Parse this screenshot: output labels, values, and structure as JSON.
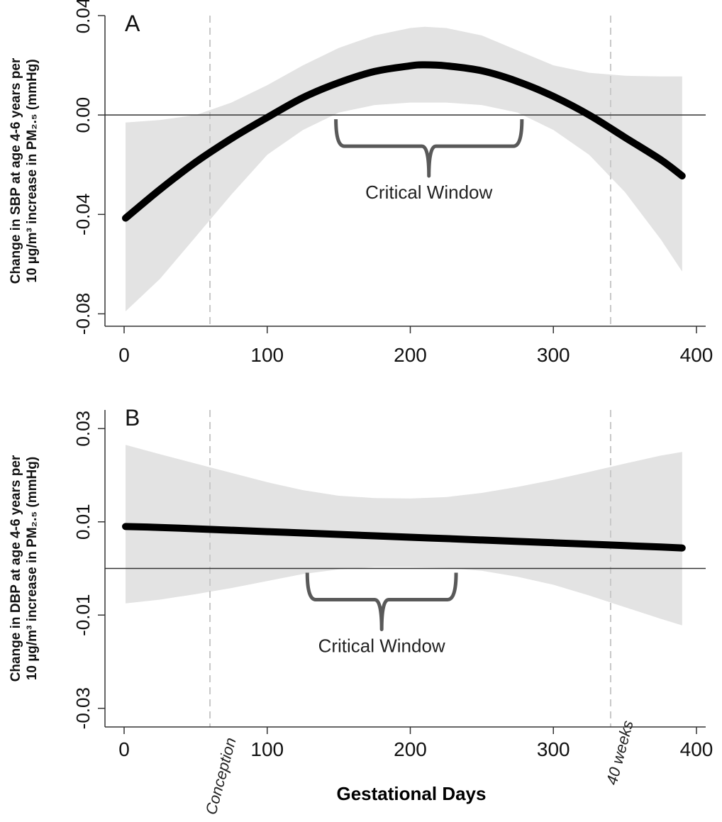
{
  "shared_xlabel": "Gestational Days",
  "annotation_text": "Critical Window",
  "vline_labels": [
    "Conception",
    "40 weeks"
  ],
  "vlines_x": [
    60,
    340
  ],
  "colors": {
    "band": "#e3e3e3",
    "line": "#000000",
    "brace": "#595959",
    "vline": "#c8c8c8"
  },
  "chart_data": [
    {
      "type": "line",
      "panel_label": "A",
      "ylabel_lines": [
        "Change in SBP  at age 4-6 years per",
        "10 µg/m³ increase in PM₂.₅ (mmHg)"
      ],
      "xlim": [
        0,
        400
      ],
      "ylim": [
        -0.085,
        0.04
      ],
      "xticks": [
        0,
        100,
        200,
        300,
        400
      ],
      "xtick_labels": [
        "0",
        "100",
        "200",
        "300",
        "400"
      ],
      "yticks": [
        -0.08,
        -0.04,
        0.0,
        0.04
      ],
      "ytick_labels": [
        "-0.08",
        "-0.04",
        "0.00",
        "0.04"
      ],
      "hline": 0,
      "critical_window": [
        148,
        278
      ],
      "x": [
        1,
        25,
        50,
        75,
        100,
        125,
        150,
        175,
        200,
        210,
        225,
        250,
        275,
        300,
        325,
        350,
        375,
        390
      ],
      "estimate": [
        -0.0415,
        -0.03,
        -0.019,
        -0.0095,
        -0.001,
        0.007,
        0.013,
        0.0175,
        0.0198,
        0.0202,
        0.0198,
        0.0178,
        0.0135,
        0.0075,
        0.0,
        -0.009,
        -0.018,
        -0.0245
      ],
      "upper": [
        -0.003,
        -0.002,
        0.0,
        0.005,
        0.012,
        0.02,
        0.027,
        0.032,
        0.035,
        0.0355,
        0.035,
        0.032,
        0.026,
        0.02,
        0.017,
        0.0158,
        0.0155,
        0.0155
      ],
      "lower": [
        -0.079,
        -0.066,
        -0.049,
        -0.032,
        -0.016,
        -0.006,
        0.001,
        0.004,
        0.005,
        0.005,
        0.005,
        0.004,
        0.001,
        -0.006,
        -0.016,
        -0.031,
        -0.05,
        -0.063
      ]
    },
    {
      "type": "line",
      "panel_label": "B",
      "ylabel_lines": [
        "Change in DBP  at age 4-6 years per",
        "10 µg/m³ increase in PM₂.₅ (mmHg)"
      ],
      "xlim": [
        0,
        400
      ],
      "ylim": [
        -0.034,
        0.034
      ],
      "xticks": [
        0,
        100,
        200,
        300,
        400
      ],
      "xtick_labels": [
        "0",
        "100",
        "200",
        "300",
        "400"
      ],
      "yticks": [
        -0.03,
        -0.01,
        0.01,
        0.03
      ],
      "ytick_labels": [
        "-0.03",
        "-0.01",
        "0.01",
        "0.03"
      ],
      "hline": 0,
      "critical_window": [
        128,
        232
      ],
      "x": [
        1,
        25,
        50,
        75,
        100,
        125,
        150,
        175,
        200,
        225,
        250,
        275,
        300,
        325,
        350,
        375,
        390
      ],
      "estimate": [
        0.009,
        0.0088,
        0.0085,
        0.0082,
        0.0079,
        0.0076,
        0.0073,
        0.007,
        0.0067,
        0.0064,
        0.0061,
        0.0058,
        0.0055,
        0.0052,
        0.0049,
        0.0046,
        0.0044
      ],
      "upper": [
        0.0265,
        0.0245,
        0.0225,
        0.0205,
        0.0185,
        0.0168,
        0.0156,
        0.0151,
        0.015,
        0.0153,
        0.0162,
        0.0175,
        0.019,
        0.0207,
        0.0225,
        0.0242,
        0.025
      ],
      "lower": [
        -0.0075,
        -0.0067,
        -0.0055,
        -0.0042,
        -0.0027,
        -0.0012,
        -0.0002,
        0.0003,
        0.0003,
        0.0001,
        -0.0005,
        -0.0018,
        -0.0035,
        -0.0058,
        -0.0083,
        -0.0108,
        -0.0122
      ]
    }
  ]
}
